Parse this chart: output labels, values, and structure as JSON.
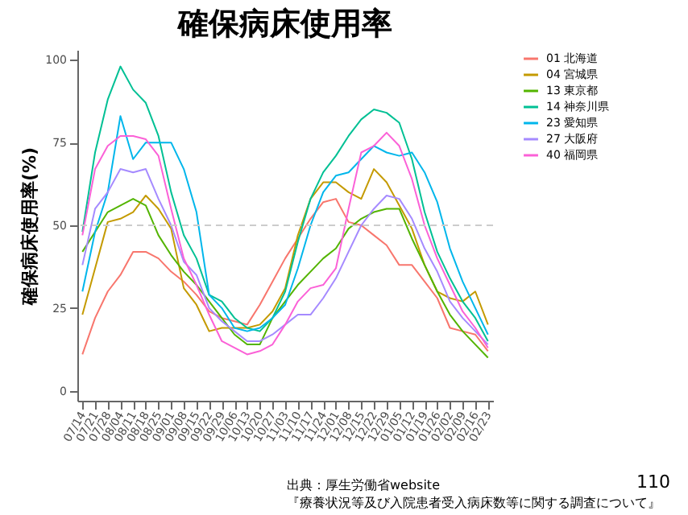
{
  "chart_data": {
    "type": "line",
    "title": "確保病床使用率",
    "ylabel": "確保病床使用率(%)",
    "categories": [
      "07/14",
      "07/21",
      "07/28",
      "08/04",
      "08/11",
      "08/18",
      "08/25",
      "09/01",
      "09/08",
      "09/15",
      "09/22",
      "09/29",
      "10/06",
      "10/13",
      "10/20",
      "10/27",
      "11/03",
      "11/10",
      "11/17",
      "11/24",
      "12/01",
      "12/08",
      "12/15",
      "12/22",
      "12/29",
      "01/05",
      "01/12",
      "01/19",
      "01/26",
      "02/02",
      "02/09",
      "02/16",
      "02/23"
    ],
    "series": [
      {
        "name": "01 北海道",
        "color": "#f8766d",
        "values": [
          11,
          22,
          30,
          35,
          42,
          42,
          40,
          36,
          33,
          29,
          24,
          22,
          21,
          20,
          26,
          33,
          40,
          46,
          52,
          57,
          58,
          51,
          50,
          47,
          44,
          38,
          38,
          33,
          28,
          19,
          18,
          17,
          12
        ]
      },
      {
        "name": "04 宮城県",
        "color": "#c49a00",
        "values": [
          23,
          37,
          51,
          52,
          54,
          59,
          55,
          49,
          31,
          26,
          18,
          19,
          19,
          19,
          20,
          24,
          31,
          47,
          58,
          63,
          63,
          60,
          58,
          67,
          63,
          56,
          49,
          38,
          30,
          28,
          27,
          30,
          20
        ]
      },
      {
        "name": "13 東京都",
        "color": "#53b400",
        "values": [
          42,
          48,
          54,
          56,
          58,
          56,
          47,
          41,
          36,
          32,
          27,
          22,
          17,
          14,
          14,
          22,
          27,
          32,
          36,
          40,
          43,
          49,
          52,
          54,
          55,
          55,
          46,
          38,
          30,
          23,
          18,
          14,
          10
        ]
      },
      {
        "name": "14 神奈川県",
        "color": "#00c094",
        "values": [
          48,
          72,
          88,
          98,
          91,
          87,
          77,
          60,
          47,
          40,
          29,
          27,
          22,
          19,
          18,
          22,
          30,
          45,
          58,
          66,
          71,
          77,
          82,
          85,
          84,
          81,
          70,
          54,
          42,
          34,
          27,
          22,
          15
        ]
      },
      {
        "name": "23 愛知県",
        "color": "#00b6eb",
        "values": [
          30,
          48,
          60,
          83,
          70,
          75,
          75,
          75,
          67,
          54,
          29,
          25,
          19,
          18,
          19,
          22,
          26,
          37,
          50,
          60,
          65,
          66,
          70,
          74,
          72,
          71,
          72,
          66,
          57,
          43,
          33,
          25,
          17
        ]
      },
      {
        "name": "27 大阪府",
        "color": "#a58aff",
        "values": [
          38,
          55,
          60,
          67,
          66,
          67,
          58,
          50,
          39,
          35,
          25,
          21,
          18,
          15,
          15,
          17,
          20,
          23,
          23,
          28,
          34,
          42,
          50,
          55,
          59,
          58,
          52,
          43,
          36,
          27,
          22,
          18,
          14
        ]
      },
      {
        "name": "40 福岡県",
        "color": "#fb61d7",
        "values": [
          47,
          67,
          74,
          77,
          77,
          76,
          71,
          55,
          40,
          32,
          23,
          15,
          13,
          11,
          12,
          14,
          20,
          27,
          31,
          32,
          37,
          55,
          72,
          74,
          78,
          74,
          64,
          50,
          40,
          32,
          24,
          19,
          13
        ]
      }
    ],
    "ylim": [
      -3,
      103
    ],
    "yticks": [
      0,
      25,
      50,
      75,
      100
    ],
    "grid": false,
    "legend": "right",
    "ref_lines": [
      {
        "axis": "y",
        "value": 50,
        "color": "#cccccc",
        "line_style": "dashed"
      }
    ],
    "annotations": [
      "出典：厚生労働省website",
      "『療養状況等及び入院患者受入病床数等に関する調査について』",
      "110"
    ]
  }
}
